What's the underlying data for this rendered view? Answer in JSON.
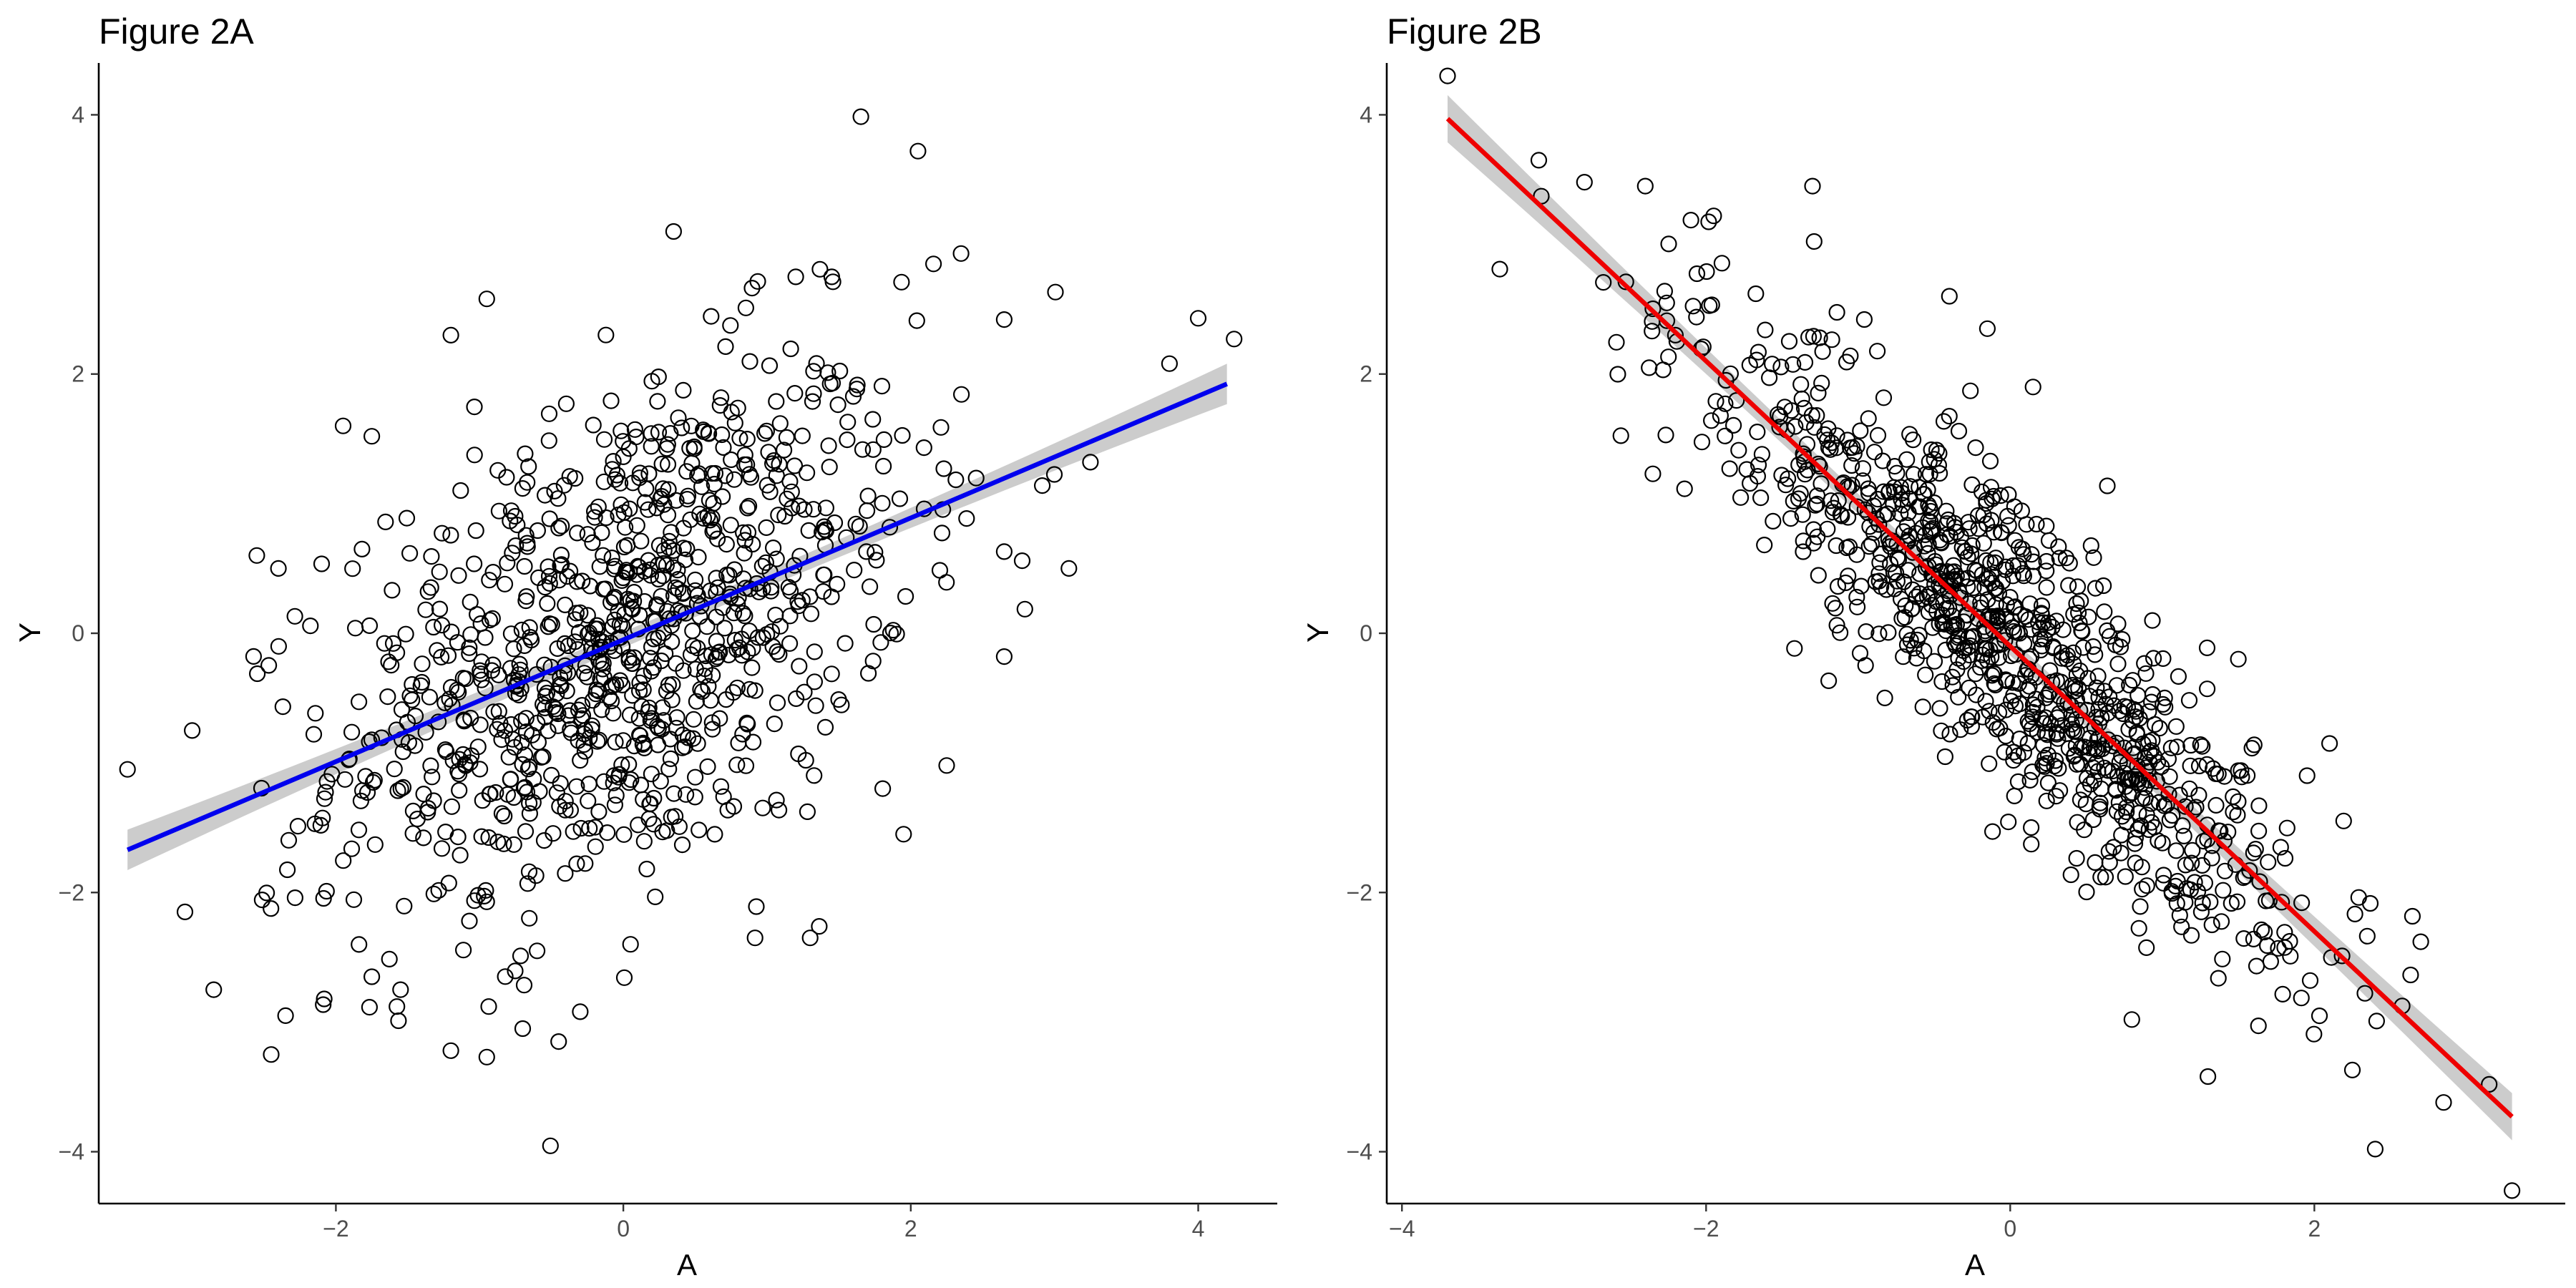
{
  "figures": [
    {
      "title": "Figure 2A"
    },
    {
      "title": "Figure 2B"
    }
  ],
  "chart_data": [
    {
      "type": "scatter",
      "title": "Figure 2A",
      "xlabel": "A",
      "ylabel": "Y",
      "xlim": [
        -3.65,
        4.55
      ],
      "ylim": [
        -4.4,
        4.4
      ],
      "x_ticks": [
        -2,
        0,
        2,
        4
      ],
      "y_ticks": [
        -4,
        -2,
        0,
        2,
        4
      ],
      "grid": false,
      "n_points": 1000,
      "fit": {
        "type": "linear",
        "color": "#0000ee",
        "band_color": "#cccccc",
        "x_range": [
          -3.45,
          4.2
        ],
        "intercept": -0.05,
        "slope": 0.47,
        "ci_half_width": 0.06
      },
      "point_style": {
        "shape": "open-circle",
        "stroke": "#000000"
      },
      "cloud": {
        "x_mean": 0.0,
        "x_sd": 1.0,
        "noise_sd": 0.95,
        "seed": 12345
      },
      "points": [
        [
          -3.45,
          -1.05
        ],
        [
          -3.0,
          -0.75
        ],
        [
          -3.05,
          -2.15
        ],
        [
          -2.85,
          -2.75
        ],
        [
          -2.45,
          -3.25
        ],
        [
          -2.35,
          -2.95
        ],
        [
          -1.95,
          1.6
        ],
        [
          -1.75,
          1.52
        ],
        [
          -2.55,
          0.6
        ],
        [
          -2.4,
          0.5
        ],
        [
          -1.2,
          2.3
        ],
        [
          -0.95,
          2.58
        ],
        [
          0.35,
          3.1
        ],
        [
          1.2,
          2.75
        ],
        [
          1.45,
          2.75
        ],
        [
          2.05,
          3.72
        ],
        [
          2.35,
          2.93
        ],
        [
          2.65,
          2.42
        ],
        [
          4.0,
          2.43
        ],
        [
          4.25,
          2.27
        ],
        [
          3.8,
          2.08
        ],
        [
          3.25,
          1.32
        ],
        [
          3.1,
          0.5
        ],
        [
          2.65,
          0.63
        ],
        [
          2.65,
          -0.18
        ],
        [
          2.25,
          -1.02
        ],
        [
          1.95,
          -1.55
        ],
        [
          1.3,
          -2.35
        ],
        [
          -0.45,
          -3.15
        ],
        [
          -0.95,
          -3.27
        ],
        [
          -1.2,
          -3.22
        ],
        [
          -0.7,
          -3.05
        ],
        [
          -0.3,
          -2.92
        ],
        [
          0.05,
          -2.4
        ],
        [
          -1.55,
          -2.75
        ],
        [
          -1.75,
          -2.65
        ],
        [
          -0.6,
          -2.45
        ]
      ]
    },
    {
      "type": "scatter",
      "title": "Figure 2B",
      "xlabel": "A",
      "ylabel": "Y",
      "xlim": [
        -4.1,
        3.65
      ],
      "ylim": [
        -4.4,
        4.4
      ],
      "x_ticks": [
        -4,
        -2,
        0,
        2
      ],
      "y_ticks": [
        -4,
        -2,
        0,
        2,
        4
      ],
      "grid": false,
      "n_points": 1000,
      "fit": {
        "type": "linear",
        "color": "#ee0000",
        "band_color": "#cccccc",
        "x_range": [
          -3.7,
          3.3
        ],
        "intercept": -0.1,
        "slope": -1.1,
        "ci_half_width": 0.07
      },
      "point_style": {
        "shape": "open-circle",
        "stroke": "#000000"
      },
      "cloud": {
        "x_mean": 0.0,
        "x_sd": 1.0,
        "noise_sd": 0.55,
        "seed": 67890
      },
      "points": [
        [
          -3.7,
          4.3
        ],
        [
          -3.1,
          3.65
        ],
        [
          -2.8,
          3.48
        ],
        [
          -2.4,
          3.45
        ],
        [
          -2.35,
          1.23
        ],
        [
          -1.3,
          3.45
        ],
        [
          -1.95,
          3.22
        ],
        [
          0.8,
          -2.98
        ],
        [
          2.4,
          -3.98
        ],
        [
          3.3,
          -4.3
        ],
        [
          3.15,
          -3.48
        ],
        [
          2.85,
          -3.62
        ],
        [
          2.25,
          -3.37
        ],
        [
          1.3,
          -3.42
        ],
        [
          2.7,
          -2.38
        ],
        [
          2.1,
          -0.85
        ],
        [
          1.5,
          -0.2
        ],
        [
          0.15,
          1.9
        ],
        [
          -0.15,
          2.35
        ],
        [
          -0.4,
          2.6
        ]
      ]
    }
  ]
}
